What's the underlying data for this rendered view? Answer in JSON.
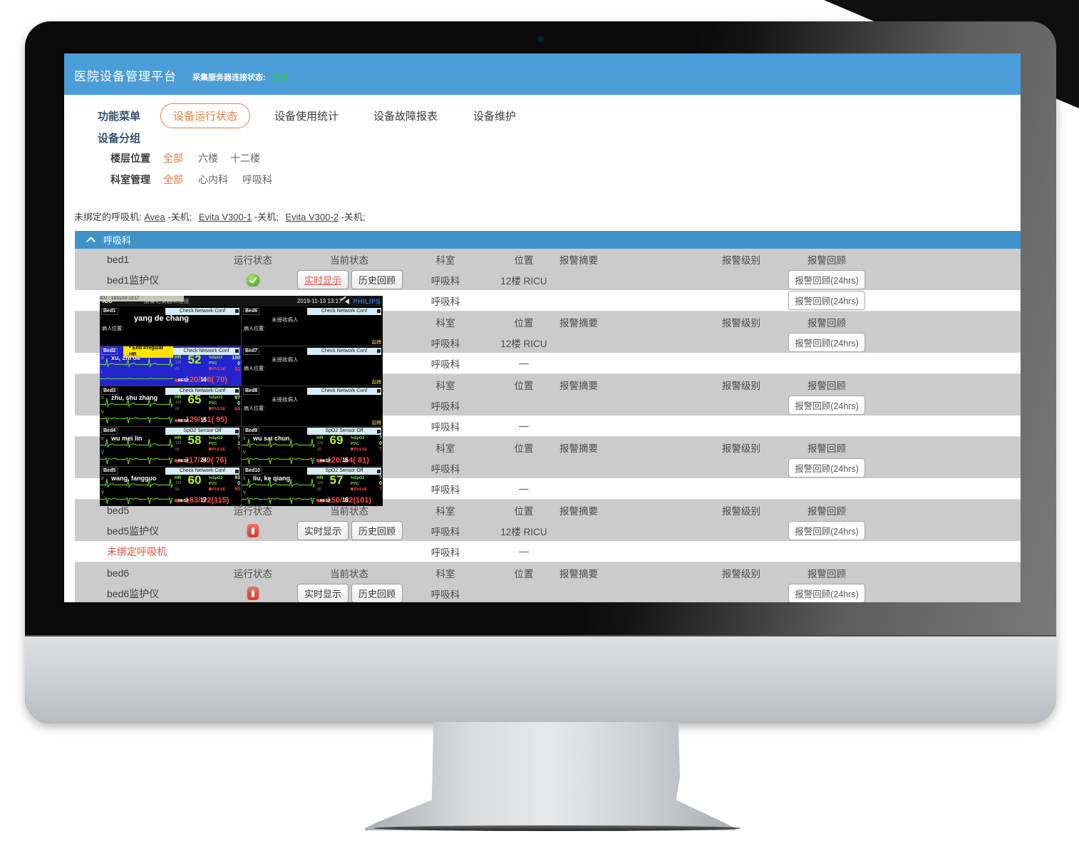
{
  "header": {
    "title": "医院设备管理平台",
    "server_status_label": "采集服务器连接状态:",
    "server_status_value": "正常"
  },
  "nav": {
    "menu_label": "功能菜单",
    "tabs": [
      {
        "label": "设备运行状态",
        "active": true
      },
      {
        "label": "设备使用统计",
        "active": false
      },
      {
        "label": "设备故障报表",
        "active": false
      },
      {
        "label": "设备维护",
        "active": false
      }
    ]
  },
  "filters": {
    "group_label": "设备分组",
    "rows": [
      {
        "label": "楼层位置",
        "options": [
          {
            "label": "全部",
            "selected": true
          },
          {
            "label": "六楼",
            "selected": false
          },
          {
            "label": "十二楼",
            "selected": false
          }
        ]
      },
      {
        "label": "科室管理",
        "options": [
          {
            "label": "全部",
            "selected": true
          },
          {
            "label": "心内科",
            "selected": false
          },
          {
            "label": "呼吸科",
            "selected": false
          }
        ]
      }
    ]
  },
  "unbound": {
    "prefix": "未绑定的呼吸机:",
    "items": [
      {
        "name": "Avea",
        "state": "-关机;"
      },
      {
        "name": "Evita V300-1",
        "state": "-关机;"
      },
      {
        "name": "Evita V300-2",
        "state": "-关机;"
      }
    ]
  },
  "section": {
    "title": "呼吸科"
  },
  "table": {
    "header_labels": {
      "run": "运行状态",
      "current": "当前状态",
      "dept": "科室",
      "loc": "位置",
      "summary": "报警摘要",
      "level": "报警级别",
      "review": "报警回顾"
    },
    "buttons": {
      "live": "实时显示",
      "history": "历史回顾",
      "review24": "报警回顾(24hrs)"
    },
    "rows": [
      {
        "kind": "head",
        "bg": "gray",
        "name": "bed1"
      },
      {
        "kind": "device",
        "bg": "gray",
        "name": "bed1监护仪",
        "status": "running",
        "buttons": true,
        "live_active": true,
        "dept": "呼吸科",
        "loc": "12楼 RICU",
        "review": true
      },
      {
        "kind": "device",
        "bg": "white",
        "name": "",
        "dept": "呼吸科",
        "loc": "",
        "review": true
      },
      {
        "kind": "head",
        "bg": "gray",
        "name": ""
      },
      {
        "kind": "device",
        "bg": "gray",
        "name": "",
        "dept": "呼吸科",
        "loc": "12楼 RICU",
        "review": true
      },
      {
        "kind": "device",
        "bg": "white",
        "name": "",
        "dept": "呼吸科",
        "loc": "—",
        "review": false
      },
      {
        "kind": "head",
        "bg": "gray",
        "name": ""
      },
      {
        "kind": "device",
        "bg": "gray",
        "name": "",
        "dept": "呼吸科",
        "loc": "",
        "review": true
      },
      {
        "kind": "device",
        "bg": "white",
        "name": "",
        "dept": "呼吸科",
        "loc": "—",
        "review": false
      },
      {
        "kind": "head",
        "bg": "gray",
        "name": ""
      },
      {
        "kind": "device",
        "bg": "gray",
        "name": "",
        "dept": "呼吸科",
        "loc": "",
        "review": true
      },
      {
        "kind": "device",
        "bg": "white",
        "name": "",
        "dept": "呼吸科",
        "loc": "—",
        "review": false
      },
      {
        "kind": "head",
        "bg": "gray",
        "name": "bed5"
      },
      {
        "kind": "device",
        "bg": "gray",
        "name": "bed5监护仪",
        "status": "stopped",
        "buttons": true,
        "live_active": false,
        "dept": "呼吸科",
        "loc": "12楼 RICU",
        "review": true
      },
      {
        "kind": "device",
        "bg": "white",
        "name": "未绑定呼吸机",
        "name_red": true,
        "dept": "呼吸科",
        "loc": "—",
        "review": false
      },
      {
        "kind": "head",
        "bg": "gray",
        "name": "bed6"
      },
      {
        "kind": "device",
        "bg": "gray",
        "name": "bed6监护仪",
        "status": "stopped",
        "buttons": true,
        "live_active": false,
        "dept": "呼吸科",
        "loc": "",
        "review": true
      }
    ]
  },
  "monitor_popup": {
    "titlebar": {
      "artifact": "ICU - 13/11/19 13:17",
      "unit": "ICU",
      "message": "报警记录器未连接",
      "datetime": "2019-11-13 13:17",
      "brand": "PHILIPS"
    },
    "vital_labels": {
      "hr": "HR",
      "spo2": "%SpO2",
      "pvc": "PVC",
      "pulse": "PULSE",
      "nbp": "NBP",
      "resp": "RESP"
    },
    "tiles": [
      {
        "bed": "Bed1",
        "type": "patient",
        "header_btn": "Check Network Conf",
        "patient": "yang de chang",
        "location_label": "病人位置:"
      },
      {
        "bed": "Bed6",
        "type": "empty",
        "header_btn": "Check Network Conf",
        "message": "未接收病人",
        "location_label": "病人位置:",
        "pacing": "起搏"
      },
      {
        "bed": "Bed2",
        "type": "vitals",
        "bg": "blue",
        "alert": "* End Irregular HR",
        "header_btn": "Check Network Conf",
        "patient": "xu, zhi de",
        "leads": [
          "II",
          "I"
        ],
        "hr": "52",
        "hr_hi": "120",
        "hr_lo": "50",
        "spo2": "100",
        "pvc": "0",
        "pulse": "51",
        "nbp": "120/ 48( 70)",
        "resp": "10"
      },
      {
        "bed": "Bed7",
        "type": "empty",
        "header_btn": "Check Network Conf",
        "message": "未接收病人",
        "location_label": "病人位置:",
        "pacing": "起搏"
      },
      {
        "bed": "Bed3",
        "type": "vitals",
        "header_btn": "Check Network Conf",
        "patient": "zhu, shu zhang",
        "leads": [
          "II",
          "V"
        ],
        "hr": "65",
        "hr_hi": "120",
        "hr_lo": "50",
        "spo2": "97",
        "pvc": "0",
        "pulse": "64",
        "nbp": "129/ 81( 95)",
        "resp": "15"
      },
      {
        "bed": "Bed8",
        "type": "empty",
        "header_btn": "Check Network Conf",
        "message": "未接收病人",
        "location_label": "病人位置:",
        "pacing": "起搏"
      },
      {
        "bed": "Bed4",
        "type": "vitals",
        "header_btn": "SpO2 Sensor Off",
        "patient": "wu mei lin",
        "leads": [
          "II",
          "V"
        ],
        "hr": "58",
        "hr_hi": "120",
        "hr_lo": "50",
        "spo2": "?",
        "pvc": "1",
        "pulse": "?",
        "nbp": "117/ 59( 76)",
        "resp": "24"
      },
      {
        "bed": "Bed9",
        "type": "vitals",
        "header_btn": "SpO2 Sensor Off",
        "patient": "wu sai chun",
        "leads": [
          "II",
          "V"
        ],
        "hr": "69",
        "hr_hi": "120",
        "hr_lo": "50",
        "spo2": "?",
        "pvc": "0",
        "pulse": "?",
        "nbp": "120/ 64( 81)",
        "resp": "16"
      },
      {
        "bed": "Bed5",
        "type": "vitals",
        "header_btn": "Check Network Conf",
        "patient": "wang, fangguo",
        "leads": [
          "II",
          "V"
        ],
        "hr": "60",
        "hr_hi": "120",
        "hr_lo": "50",
        "spo2": "93",
        "pvc": "0",
        "pulse": "60",
        "nbp": "183/ 92(115)",
        "resp": "17"
      },
      {
        "bed": "Bed10",
        "type": "vitals",
        "header_btn": "SpO2 Sensor Off",
        "patient": "liu, ke qiang",
        "leads": [
          "II",
          "V"
        ],
        "hr": "57",
        "hr_hi": "120",
        "hr_lo": "50",
        "spo2": "?",
        "pvc": "0",
        "pulse": "?",
        "nbp": "150/ 82(101)",
        "resp": "16"
      }
    ]
  }
}
